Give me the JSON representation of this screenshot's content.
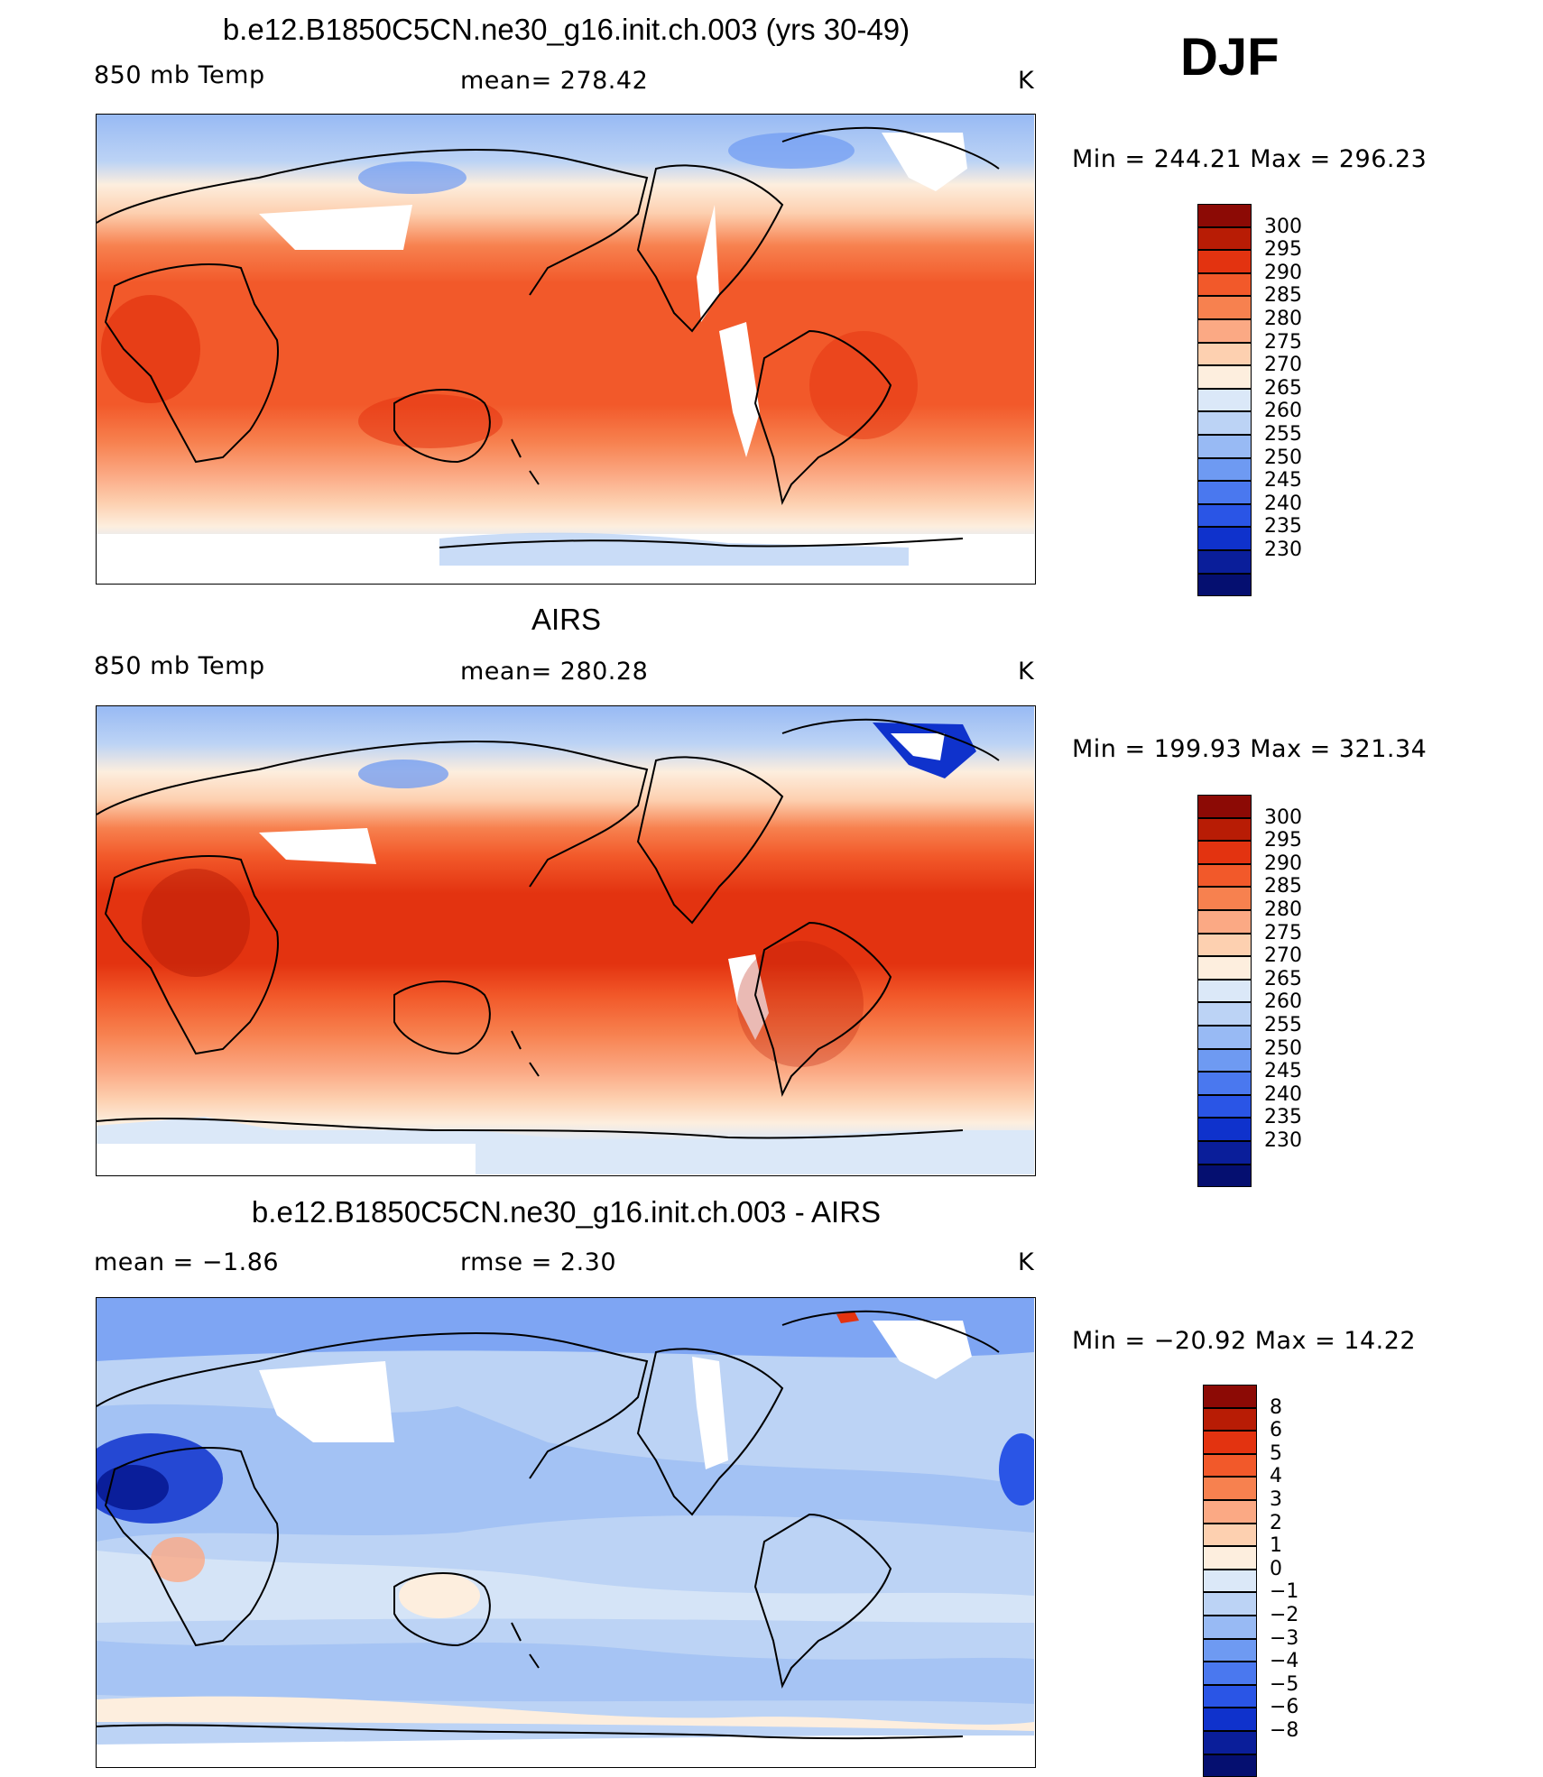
{
  "season": "DJF",
  "panels": [
    {
      "title": "b.e12.B1850C5CN.ne30_g16.init.ch.003 (yrs 30-49)",
      "left_label": "850 mb Temp",
      "center_label": "mean=  278.42",
      "units": "K",
      "minmax": "Min  =  244.21  Max  =  296.23",
      "colorbar": {
        "colors": [
          "#8c0a05",
          "#b81c05",
          "#e33310",
          "#f2592a",
          "#f7814f",
          "#fba984",
          "#fdd0b0",
          "#fdeede",
          "#dbe8f8",
          "#bcd3f5",
          "#98baf4",
          "#6e9af2",
          "#4a78ef",
          "#2a55e6",
          "#0f32cc",
          "#0a1e9a",
          "#050f70"
        ],
        "ticks": [
          "300",
          "295",
          "290",
          "285",
          "280",
          "275",
          "270",
          "265",
          "260",
          "255",
          "250",
          "245",
          "240",
          "235",
          "230"
        ]
      }
    },
    {
      "title": "AIRS",
      "left_label": "850 mb Temp",
      "center_label": "mean=  280.28",
      "units": "K",
      "minmax": "Min  =  199.93  Max  =  321.34",
      "colorbar": {
        "colors": [
          "#8c0a05",
          "#b81c05",
          "#e33310",
          "#f2592a",
          "#f7814f",
          "#fba984",
          "#fdd0b0",
          "#fdeede",
          "#dbe8f8",
          "#bcd3f5",
          "#98baf4",
          "#6e9af2",
          "#4a78ef",
          "#2a55e6",
          "#0f32cc",
          "#0a1e9a",
          "#050f70"
        ],
        "ticks": [
          "300",
          "295",
          "290",
          "285",
          "280",
          "275",
          "270",
          "265",
          "260",
          "255",
          "250",
          "245",
          "240",
          "235",
          "230"
        ]
      }
    },
    {
      "title": "b.e12.B1850C5CN.ne30_g16.init.ch.003 - AIRS",
      "left_label": "mean =   −1.86",
      "center_label": "rmse =     2.30",
      "units": "K",
      "minmax": "Min  =  −20.92  Max  =    14.22",
      "colorbar": {
        "colors": [
          "#8c0a05",
          "#b81c05",
          "#e33310",
          "#f2592a",
          "#f7814f",
          "#fba984",
          "#fdd0b0",
          "#fdeede",
          "#dbe8f8",
          "#bcd3f5",
          "#98baf4",
          "#6e9af2",
          "#4a78ef",
          "#2a55e6",
          "#0f32cc",
          "#0a1e9a",
          "#050f70"
        ],
        "ticks": [
          "8",
          "6",
          "5",
          "4",
          "3",
          "2",
          "1",
          "0",
          "−1",
          "−2",
          "−3",
          "−4",
          "−5",
          "−6",
          "−8"
        ]
      }
    }
  ]
}
